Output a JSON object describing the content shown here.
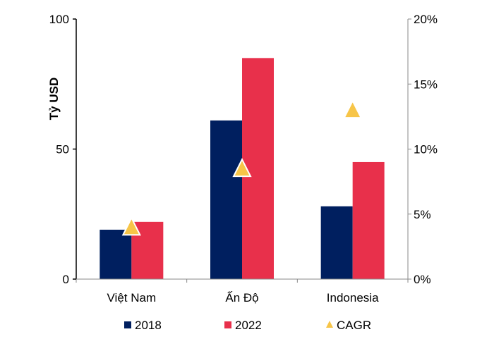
{
  "chart_data": {
    "type": "bar",
    "categories": [
      "Việt Nam",
      "Ấn Độ",
      "Indonesia"
    ],
    "series": [
      {
        "name": "2018",
        "axis": "left",
        "type": "bar",
        "color": "#001f5f",
        "values": [
          19,
          61,
          28
        ]
      },
      {
        "name": "2022",
        "axis": "left",
        "type": "bar",
        "color": "#e8304b",
        "values": [
          22,
          85,
          45
        ]
      },
      {
        "name": "CAGR",
        "axis": "right",
        "type": "marker",
        "marker": "triangle",
        "color": "#f7c548",
        "values": [
          4.0,
          8.5,
          13.0
        ]
      }
    ],
    "ylabel": "Tỷ USD",
    "ylim": [
      0,
      100
    ],
    "yticks": [
      "0",
      "50",
      "100"
    ],
    "y2lim": [
      0,
      20
    ],
    "y2ticks": [
      "0%",
      "5%",
      "10%",
      "15%",
      "20%"
    ],
    "grid": false,
    "legend": "bottom"
  }
}
